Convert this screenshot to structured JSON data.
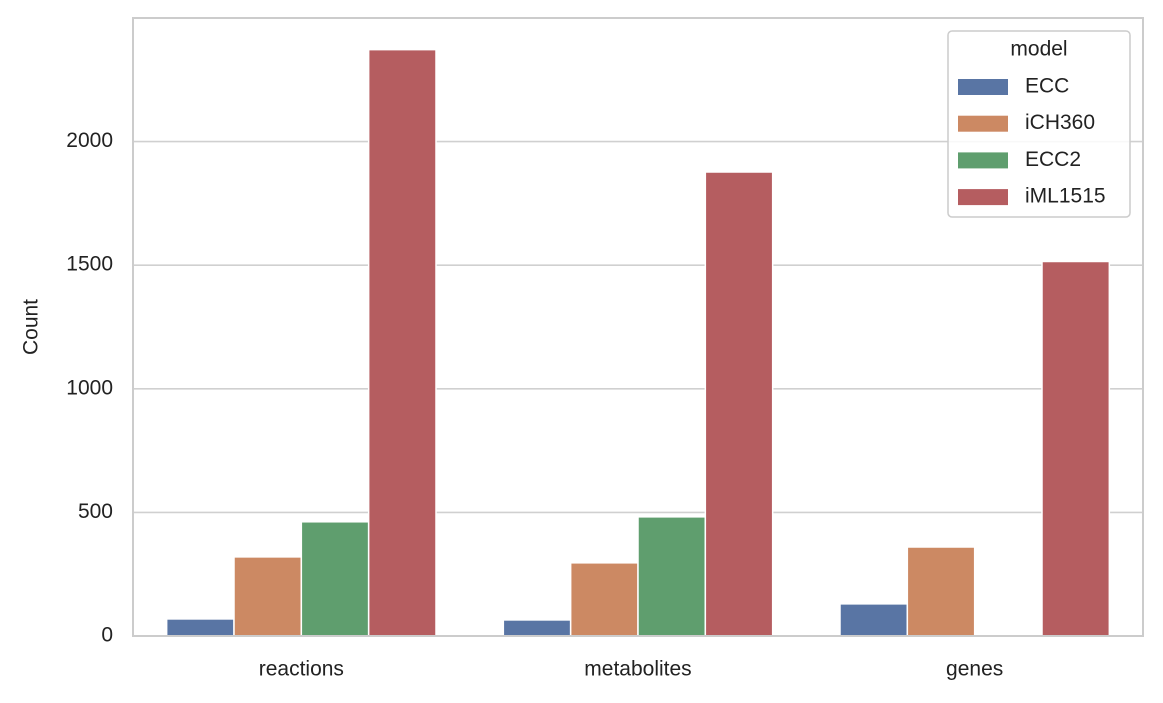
{
  "chart_data": {
    "type": "bar",
    "y_label": "Count",
    "categories": [
      "reactions",
      "metabolites",
      "genes"
    ],
    "series": [
      {
        "name": "ECC",
        "color": "#5975a4",
        "values": [
          69,
          65,
          130
        ]
      },
      {
        "name": "iCH360",
        "color": "#cc8963",
        "values": [
          320,
          296,
          360
        ]
      },
      {
        "name": "ECC2",
        "color": "#5f9e6e",
        "values": [
          462,
          482,
          null
        ]
      },
      {
        "name": "iML1515",
        "color": "#b55d60",
        "values": [
          2372,
          1877,
          1515
        ]
      }
    ],
    "legend_title": "model",
    "legend": "upper right",
    "ylim": [
      0,
      2500
    ],
    "yticks": [
      0,
      500,
      1000,
      1500,
      2000
    ],
    "grid": true
  }
}
